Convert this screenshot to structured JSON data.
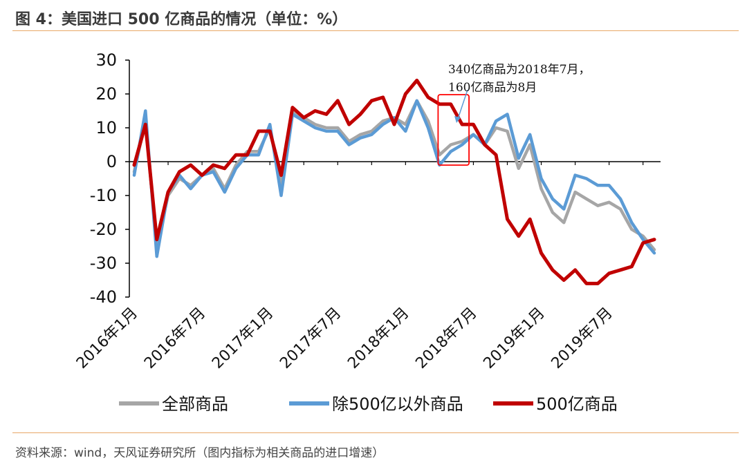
{
  "header": {
    "title": "图 4：美国进口 500 亿商品的情况（单位：%）"
  },
  "footer": {
    "source": "资料来源：wind，天风证券研究所（图内指标为相关商品的进口增速）"
  },
  "colors": {
    "accent_rule": "#e8a766",
    "all_goods": "#a6a6a6",
    "excl_500": "#5b9bd5",
    "goods_500": "#c00000"
  },
  "chart_data": {
    "type": "line",
    "title": "",
    "ylim": [
      -40,
      30
    ],
    "yticks": [
      30,
      20,
      10,
      0,
      -10,
      -20,
      -30,
      -40
    ],
    "x_count": 47,
    "xtick_labels": [
      {
        "index": 0,
        "label": "2016年1月"
      },
      {
        "index": 6,
        "label": "2016年7月"
      },
      {
        "index": 12,
        "label": "2017年1月"
      },
      {
        "index": 18,
        "label": "2017年7月"
      },
      {
        "index": 24,
        "label": "2018年1月"
      },
      {
        "index": 30,
        "label": "2018年7月"
      },
      {
        "index": 36,
        "label": "2019年1月"
      },
      {
        "index": 42,
        "label": "2019年7月"
      }
    ],
    "series": [
      {
        "name": "全部商品",
        "color": "#a6a6a6",
        "values": [
          -3,
          12,
          -25,
          -10,
          -5,
          -7,
          -4,
          -2,
          -8,
          -1,
          3,
          3,
          10,
          -7,
          15,
          13,
          11,
          10,
          10,
          6,
          8,
          9,
          12,
          13,
          11,
          18,
          12,
          2,
          5,
          6,
          8,
          5,
          10,
          9,
          -2,
          5,
          -8,
          -15,
          -18,
          -9,
          -11,
          -13,
          -12,
          -14,
          -20,
          -22,
          -26
        ]
      },
      {
        "name": "除500亿以外商品",
        "color": "#5b9bd5",
        "values": [
          -4,
          15,
          -28,
          -9,
          -4,
          -8,
          -4,
          -3,
          -9,
          -2,
          2,
          2,
          11,
          -10,
          14,
          12,
          10,
          9,
          9,
          5,
          7,
          8,
          11,
          13,
          9,
          18,
          10,
          -1,
          3,
          5,
          8,
          5,
          12,
          14,
          1,
          8,
          -5,
          -11,
          -14,
          -4,
          -5,
          -7,
          -7,
          -11,
          -18,
          -23,
          -27
        ]
      },
      {
        "name": "500亿商品",
        "color": "#c00000",
        "values": [
          -1,
          11,
          -23,
          -9,
          -3,
          -1,
          -4,
          -1,
          -2,
          2,
          2,
          9,
          9,
          -4,
          16,
          13,
          15,
          14,
          18,
          11,
          14,
          18,
          19,
          11,
          20,
          24,
          19,
          17,
          17,
          11,
          11,
          5,
          2,
          -17,
          -22,
          -17,
          -27,
          -32,
          -35,
          -32,
          -36,
          -36,
          -33,
          -32,
          -31,
          -24,
          -23
        ]
      }
    ],
    "annotation": {
      "lines": [
        "340亿商品为2018年7月，",
        "160亿商品为8月"
      ],
      "highlight_index_range": [
        27,
        29
      ]
    },
    "legend_position": "bottom"
  }
}
